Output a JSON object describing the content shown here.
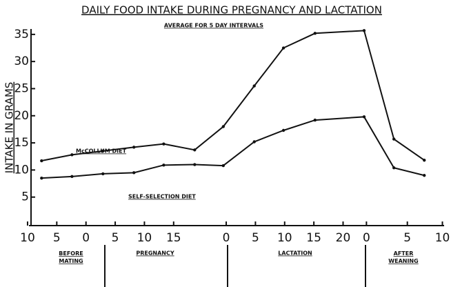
{
  "chart_data": {
    "type": "line",
    "title": "DAILY FOOD INTAKE DURING PREGNANCY AND LACTATION",
    "subtitle": "AVERAGE FOR 5 DAY INTERVALS",
    "y_label": "INTAKE IN GRAMS",
    "x": [
      -7.6,
      -2.4,
      2.9,
      8.2,
      13.3,
      18.6,
      23.5,
      28.8,
      33.8,
      39.2,
      47.6,
      52.7,
      57.9
    ],
    "series": [
      {
        "name": "McCOLLUM DIET",
        "color": "#111111",
        "values": [
          11.7,
          12.8,
          13.5,
          14.2,
          14.8,
          13.7,
          18.0,
          25.5,
          32.5,
          35.2,
          35.7,
          15.7,
          11.8
        ]
      },
      {
        "name": "SELF-SELECTION DIET",
        "color": "#111111",
        "values": [
          8.5,
          8.8,
          9.3,
          9.5,
          10.9,
          11.0,
          10.8,
          15.2,
          17.3,
          19.2,
          19.8,
          10.4,
          9.0
        ]
      }
    ],
    "periods": [
      "BEFORE MATING",
      "PREGNANCY",
      "LACTATION",
      "AFTER WEANING"
    ],
    "xlim": [
      -11,
      62
    ],
    "xticks": [
      {
        "value": -10,
        "label": "10"
      },
      {
        "value": -5,
        "label": "5"
      },
      0,
      5,
      10,
      15,
      {
        "value": 24,
        "label": "0"
      },
      {
        "value": 29,
        "label": "5"
      },
      {
        "value": 34,
        "label": "10"
      },
      {
        "value": 39,
        "label": "15"
      },
      {
        "value": 44,
        "label": "20"
      },
      {
        "value": 48,
        "label": "0"
      },
      {
        "value": 55,
        "label": "5"
      },
      {
        "value": 61,
        "label": "10"
      }
    ],
    "ylim": [
      0,
      36
    ],
    "yticks": [
      5,
      10,
      15,
      20,
      25,
      30,
      35
    ],
    "grid": false
  }
}
